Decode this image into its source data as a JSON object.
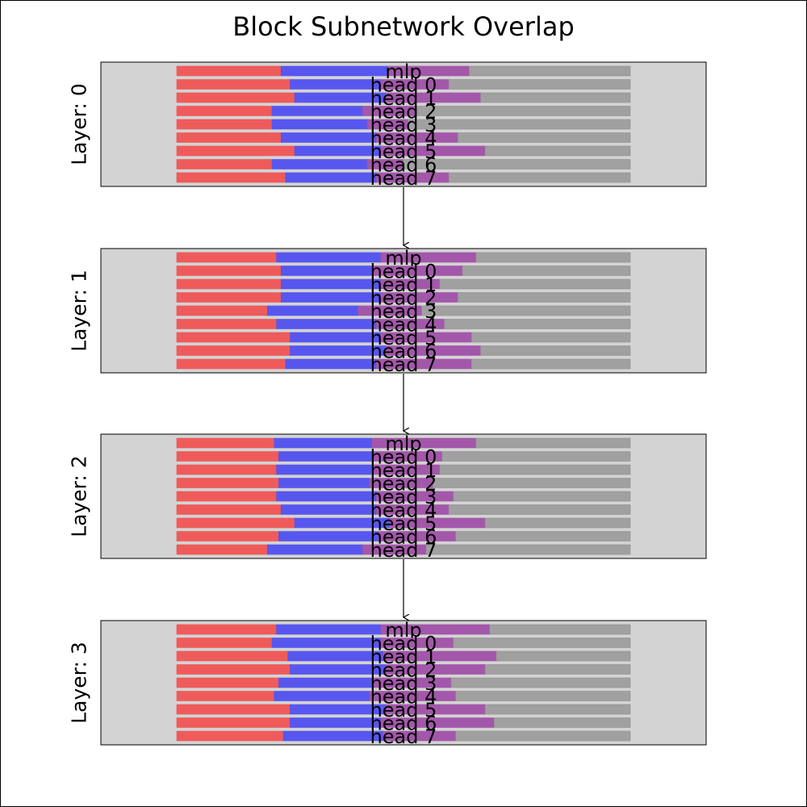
{
  "title": "Block Subnetwork Overlap",
  "colors": {
    "red": "#f05454",
    "blue": "#5050f0",
    "purple": "#a050a8",
    "gray": "#a0a0a0",
    "panel_bg": "#d3d3d3"
  },
  "chart_data": {
    "type": "bar",
    "orientation": "horizontal-stacked",
    "xlim": [
      0,
      1
    ],
    "segment_order": [
      "red",
      "blue",
      "purple",
      "gray"
    ],
    "panels": [
      {
        "label": "Layer: 0",
        "rows": [
          {
            "name": "mlp",
            "red": 0.23,
            "blue": 0.235,
            "purple": 0.18
          },
          {
            "name": "head 0",
            "red": 0.25,
            "blue": 0.2,
            "purple": 0.15
          },
          {
            "name": "head 1",
            "red": 0.26,
            "blue": 0.2,
            "purple": 0.21
          },
          {
            "name": "head 2",
            "red": 0.21,
            "blue": 0.2,
            "purple": 0.12
          },
          {
            "name": "head 3",
            "red": 0.21,
            "blue": 0.21,
            "purple": 0.09
          },
          {
            "name": "head 4",
            "red": 0.23,
            "blue": 0.21,
            "purple": 0.18
          },
          {
            "name": "head 5",
            "red": 0.26,
            "blue": 0.19,
            "purple": 0.23
          },
          {
            "name": "head 6",
            "red": 0.21,
            "blue": 0.21,
            "purple": 0.08
          },
          {
            "name": "head 7",
            "red": 0.24,
            "blue": 0.2,
            "purple": 0.16
          }
        ]
      },
      {
        "label": "Layer: 1",
        "rows": [
          {
            "name": "mlp",
            "red": 0.22,
            "blue": 0.23,
            "purple": 0.21
          },
          {
            "name": "head 0",
            "red": 0.23,
            "blue": 0.2,
            "purple": 0.2
          },
          {
            "name": "head 1",
            "red": 0.23,
            "blue": 0.22,
            "purple": 0.13
          },
          {
            "name": "head 2",
            "red": 0.23,
            "blue": 0.22,
            "purple": 0.17
          },
          {
            "name": "head 3",
            "red": 0.2,
            "blue": 0.2,
            "purple": 0.14
          },
          {
            "name": "head 4",
            "red": 0.22,
            "blue": 0.22,
            "purple": 0.15
          },
          {
            "name": "head 5",
            "red": 0.25,
            "blue": 0.2,
            "purple": 0.2
          },
          {
            "name": "head 6",
            "red": 0.25,
            "blue": 0.21,
            "purple": 0.21
          },
          {
            "name": "head 7",
            "red": 0.24,
            "blue": 0.2,
            "purple": 0.21
          }
        ]
      },
      {
        "label": "Layer: 2",
        "rows": [
          {
            "name": "mlp",
            "red": 0.215,
            "blue": 0.215,
            "purple": 0.23
          },
          {
            "name": "head 0",
            "red": 0.225,
            "blue": 0.21,
            "purple": 0.15
          },
          {
            "name": "head 1",
            "red": 0.22,
            "blue": 0.21,
            "purple": 0.15
          },
          {
            "name": "head 2",
            "red": 0.225,
            "blue": 0.2,
            "purple": 0.14
          },
          {
            "name": "head 3",
            "red": 0.22,
            "blue": 0.22,
            "purple": 0.17
          },
          {
            "name": "head 4",
            "red": 0.23,
            "blue": 0.21,
            "purple": 0.16
          },
          {
            "name": "head 5",
            "red": 0.26,
            "blue": 0.21,
            "purple": 0.21
          },
          {
            "name": "head 6",
            "red": 0.225,
            "blue": 0.22,
            "purple": 0.17
          },
          {
            "name": "head 7",
            "red": 0.2,
            "blue": 0.21,
            "purple": 0.14
          }
        ]
      },
      {
        "label": "Layer: 3",
        "rows": [
          {
            "name": "mlp",
            "red": 0.22,
            "blue": 0.23,
            "purple": 0.24
          },
          {
            "name": "head 0",
            "red": 0.21,
            "blue": 0.24,
            "purple": 0.16
          },
          {
            "name": "head 1",
            "red": 0.245,
            "blue": 0.21,
            "purple": 0.25
          },
          {
            "name": "head 2",
            "red": 0.25,
            "blue": 0.21,
            "purple": 0.22
          },
          {
            "name": "head 3",
            "red": 0.225,
            "blue": 0.21,
            "purple": 0.17
          },
          {
            "name": "head 4",
            "red": 0.215,
            "blue": 0.21,
            "purple": 0.19
          },
          {
            "name": "head 5",
            "red": 0.25,
            "blue": 0.21,
            "purple": 0.22
          },
          {
            "name": "head 6",
            "red": 0.25,
            "blue": 0.2,
            "purple": 0.25
          },
          {
            "name": "head 7",
            "red": 0.235,
            "blue": 0.22,
            "purple": 0.16
          }
        ]
      }
    ]
  }
}
